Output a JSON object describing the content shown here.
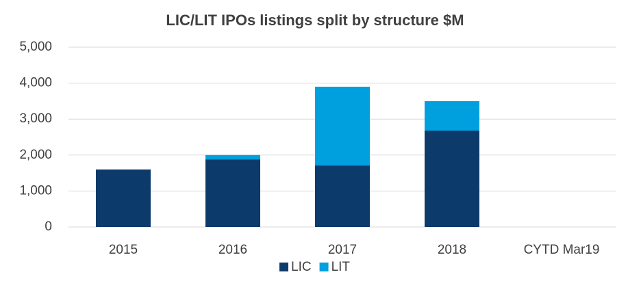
{
  "chart_data": {
    "type": "stacked_bar",
    "title": "LIC/LIT IPOs listings split by structure $M",
    "categories": [
      "2015",
      "2016",
      "2017",
      "2018",
      "CYTD Mar19"
    ],
    "series": [
      {
        "name": "LIC",
        "color": "#0c3a6b",
        "values": [
          1600,
          1880,
          1710,
          2680,
          0
        ]
      },
      {
        "name": "LIT",
        "color": "#00a0df",
        "values": [
          0,
          120,
          2190,
          820,
          0
        ]
      }
    ],
    "ylim": [
      0,
      5000
    ],
    "yticks": [
      0,
      {
        "value": 1000,
        "label": "1,000"
      },
      {
        "value": 2000,
        "label": "2,000"
      },
      {
        "value": 3000,
        "label": "3,000"
      },
      {
        "value": 4000,
        "label": "4,000"
      },
      {
        "value": 5000,
        "label": "5,000"
      }
    ],
    "grid": true,
    "legend": "bottom"
  }
}
